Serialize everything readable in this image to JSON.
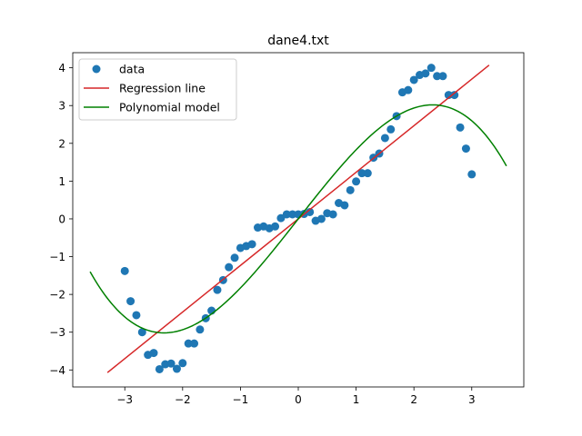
{
  "chart_data": {
    "type": "scatter",
    "title": "dane4.txt",
    "xlabel": "",
    "ylabel": "",
    "xlim": [
      -3.9,
      3.9
    ],
    "ylim": [
      -4.45,
      4.4
    ],
    "xticks": [
      -3,
      -2,
      -1,
      0,
      1,
      2,
      3
    ],
    "yticks": [
      -4,
      -3,
      -2,
      -1,
      0,
      1,
      2,
      3,
      4
    ],
    "grid": false,
    "legend_position": "top-left",
    "legend": [
      "data",
      "Regression line",
      "Polynomial model"
    ],
    "colors": {
      "data": "#1f77b4",
      "regression": "#d62728",
      "polynomial": "#008000"
    },
    "series": [
      {
        "name": "data",
        "kind": "scatter",
        "x": [
          -3.0,
          -2.9,
          -2.8,
          -2.7,
          -2.6,
          -2.5,
          -2.4,
          -2.3,
          -2.2,
          -2.1,
          -2.0,
          -1.9,
          -1.8,
          -1.7,
          -1.6,
          -1.5,
          -1.4,
          -1.3,
          -1.2,
          -1.1,
          -1.0,
          -0.9,
          -0.8,
          -0.7,
          -0.6,
          -0.5,
          -0.4,
          -0.3,
          -0.2,
          -0.1,
          0.0,
          0.1,
          0.2,
          0.3,
          0.4,
          0.5,
          0.6,
          0.7,
          0.8,
          0.9,
          1.0,
          1.1,
          1.2,
          1.3,
          1.4,
          1.5,
          1.6,
          1.7,
          1.8,
          1.9,
          2.0,
          2.1,
          2.2,
          2.3,
          2.4,
          2.5,
          2.6,
          2.7,
          2.8,
          2.9,
          3.0
        ],
        "y": [
          -1.38,
          -2.18,
          -2.55,
          -3.0,
          -3.6,
          -3.55,
          -3.98,
          -3.85,
          -3.83,
          -3.97,
          -3.82,
          -3.3,
          -3.3,
          -2.93,
          -2.63,
          -2.43,
          -1.88,
          -1.62,
          -1.28,
          -1.03,
          -0.77,
          -0.72,
          -0.67,
          -0.23,
          -0.2,
          -0.25,
          -0.2,
          0.02,
          0.12,
          0.12,
          0.12,
          0.13,
          0.18,
          -0.05,
          0.0,
          0.15,
          0.12,
          0.42,
          0.36,
          0.76,
          0.99,
          1.21,
          1.21,
          1.62,
          1.73,
          2.14,
          2.37,
          2.72,
          3.35,
          3.41,
          3.68,
          3.81,
          3.85,
          4.0,
          3.78,
          3.78,
          3.28,
          3.28,
          2.42,
          1.86,
          1.18
        ]
      },
      {
        "name": "Regression line",
        "kind": "line",
        "x": [
          -3.3,
          3.3
        ],
        "y": [
          -4.07,
          4.07
        ]
      },
      {
        "name": "Polynomial model",
        "kind": "cubic",
        "x_range": [
          -3.6,
          3.6
        ],
        "coefficients": [
          0.0,
          1.949,
          0.0,
          -0.1204
        ]
      }
    ]
  }
}
